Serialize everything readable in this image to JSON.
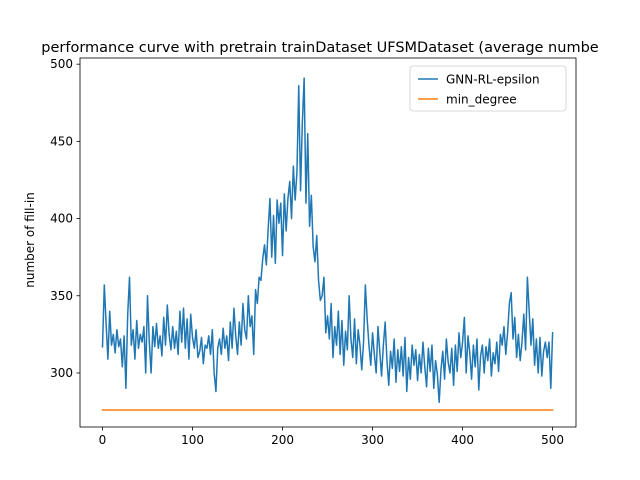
{
  "chart_data": {
    "type": "line",
    "title": "performance curve with pretrain trainDataset UFSMDataset (average numbe",
    "xlabel": "",
    "ylabel": "number of fill-in",
    "xlim": [
      -25,
      526
    ],
    "ylim": [
      265,
      504
    ],
    "xticks": [
      0,
      100,
      200,
      300,
      400,
      500
    ],
    "yticks": [
      300,
      350,
      400,
      450,
      500
    ],
    "grid": false,
    "legend_position": "top-right",
    "series": [
      {
        "name": "GNN-RL-epsilon",
        "color": "#1f77b4",
        "keypoints": [
          [
            0,
            317
          ],
          [
            2,
            357
          ],
          [
            4,
            332
          ],
          [
            6,
            309
          ],
          [
            8,
            340
          ],
          [
            10,
            318
          ],
          [
            12,
            325
          ],
          [
            14,
            313
          ],
          [
            16,
            328
          ],
          [
            18,
            317
          ],
          [
            20,
            322
          ],
          [
            22,
            304
          ],
          [
            24,
            324
          ],
          [
            26,
            290
          ],
          [
            28,
            338
          ],
          [
            30,
            362
          ],
          [
            32,
            318
          ],
          [
            34,
            328
          ],
          [
            36,
            309
          ],
          [
            38,
            334
          ],
          [
            40,
            316
          ],
          [
            42,
            325
          ],
          [
            44,
            320
          ],
          [
            46,
            330
          ],
          [
            48,
            300
          ],
          [
            50,
            350
          ],
          [
            52,
            320
          ],
          [
            54,
            300
          ],
          [
            56,
            330
          ],
          [
            58,
            317
          ],
          [
            60,
            332
          ],
          [
            62,
            316
          ],
          [
            64,
            324
          ],
          [
            66,
            311
          ],
          [
            68,
            336
          ],
          [
            70,
            318
          ],
          [
            72,
            344
          ],
          [
            74,
            325
          ],
          [
            76,
            315
          ],
          [
            78,
            330
          ],
          [
            80,
            316
          ],
          [
            82,
            327
          ],
          [
            84,
            312
          ],
          [
            86,
            340
          ],
          [
            88,
            320
          ],
          [
            90,
            342
          ],
          [
            92,
            316
          ],
          [
            94,
            335
          ],
          [
            96,
            309
          ],
          [
            98,
            338
          ],
          [
            100,
            323
          ],
          [
            102,
            316
          ],
          [
            104,
            328
          ],
          [
            106,
            310
          ],
          [
            108,
            314
          ],
          [
            110,
            323
          ],
          [
            112,
            306
          ],
          [
            114,
            318
          ],
          [
            116,
            316
          ],
          [
            118,
            324
          ],
          [
            120,
            312
          ],
          [
            122,
            328
          ],
          [
            124,
            300
          ],
          [
            126,
            288
          ],
          [
            128,
            316
          ],
          [
            130,
            322
          ],
          [
            132,
            312
          ],
          [
            134,
            329
          ],
          [
            136,
            316
          ],
          [
            138,
            324
          ],
          [
            140,
            308
          ],
          [
            142,
            333
          ],
          [
            144,
            316
          ],
          [
            146,
            342
          ],
          [
            148,
            324
          ],
          [
            150,
            312
          ],
          [
            152,
            333
          ],
          [
            154,
            318
          ],
          [
            156,
            345
          ],
          [
            158,
            328
          ],
          [
            160,
            322
          ],
          [
            162,
            350
          ],
          [
            164,
            330
          ],
          [
            166,
            337
          ],
          [
            168,
            312
          ],
          [
            170,
            354
          ],
          [
            172,
            345
          ],
          [
            174,
            362
          ],
          [
            176,
            360
          ],
          [
            178,
            374
          ],
          [
            180,
            383
          ],
          [
            182,
            370
          ],
          [
            184,
            393
          ],
          [
            186,
            413
          ],
          [
            188,
            375
          ],
          [
            190,
            402
          ],
          [
            192,
            371
          ],
          [
            194,
            412
          ],
          [
            196,
            397
          ],
          [
            198,
            410
          ],
          [
            200,
            376
          ],
          [
            202,
            416
          ],
          [
            204,
            392
          ],
          [
            206,
            413
          ],
          [
            208,
            424
          ],
          [
            210,
            400
          ],
          [
            212,
            434
          ],
          [
            214,
            412
          ],
          [
            216,
            430
          ],
          [
            218,
            486
          ],
          [
            220,
            418
          ],
          [
            222,
            462
          ],
          [
            224,
            491
          ],
          [
            226,
            410
          ],
          [
            228,
            455
          ],
          [
            230,
            395
          ],
          [
            232,
            415
          ],
          [
            234,
            382
          ],
          [
            236,
            372
          ],
          [
            238,
            389
          ],
          [
            240,
            360
          ],
          [
            242,
            347
          ],
          [
            244,
            350
          ],
          [
            246,
            362
          ],
          [
            248,
            326
          ],
          [
            250,
            337
          ],
          [
            252,
            322
          ],
          [
            254,
            345
          ],
          [
            256,
            310
          ],
          [
            258,
            330
          ],
          [
            260,
            318
          ],
          [
            262,
            340
          ],
          [
            264,
            312
          ],
          [
            266,
            334
          ],
          [
            268,
            305
          ],
          [
            270,
            327
          ],
          [
            272,
            315
          ],
          [
            274,
            350
          ],
          [
            276,
            322
          ],
          [
            278,
            310
          ],
          [
            280,
            335
          ],
          [
            282,
            306
          ],
          [
            284,
            328
          ],
          [
            286,
            318
          ],
          [
            288,
            302
          ],
          [
            290,
            320
          ],
          [
            292,
            357
          ],
          [
            294,
            335
          ],
          [
            296,
            318
          ],
          [
            298,
            305
          ],
          [
            300,
            326
          ],
          [
            302,
            312
          ],
          [
            304,
            300
          ],
          [
            306,
            330
          ],
          [
            308,
            314
          ],
          [
            310,
            298
          ],
          [
            312,
            318
          ],
          [
            314,
            333
          ],
          [
            316,
            308
          ],
          [
            318,
            292
          ],
          [
            320,
            314
          ],
          [
            322,
            303
          ],
          [
            324,
            322
          ],
          [
            326,
            294
          ],
          [
            328,
            315
          ],
          [
            330,
            301
          ],
          [
            332,
            317
          ],
          [
            334,
            298
          ],
          [
            336,
            323
          ],
          [
            338,
            288
          ],
          [
            340,
            310
          ],
          [
            342,
            296
          ],
          [
            344,
            318
          ],
          [
            346,
            305
          ],
          [
            348,
            315
          ],
          [
            350,
            295
          ],
          [
            352,
            312
          ],
          [
            354,
            300
          ],
          [
            356,
            320
          ],
          [
            358,
            304
          ],
          [
            360,
            291
          ],
          [
            362,
            316
          ],
          [
            364,
            301
          ],
          [
            366,
            318
          ],
          [
            368,
            290
          ],
          [
            370,
            308
          ],
          [
            372,
            299
          ],
          [
            374,
            281
          ],
          [
            376,
            302
          ],
          [
            378,
            314
          ],
          [
            380,
            296
          ],
          [
            382,
            322
          ],
          [
            384,
            307
          ],
          [
            386,
            300
          ],
          [
            388,
            316
          ],
          [
            390,
            292
          ],
          [
            392,
            318
          ],
          [
            394,
            301
          ],
          [
            396,
            326
          ],
          [
            398,
            310
          ],
          [
            400,
            320
          ],
          [
            402,
            336
          ],
          [
            404,
            300
          ],
          [
            406,
            324
          ],
          [
            408,
            313
          ],
          [
            410,
            296
          ],
          [
            412,
            318
          ],
          [
            414,
            304
          ],
          [
            416,
            322
          ],
          [
            418,
            289
          ],
          [
            420,
            311
          ],
          [
            422,
            318
          ],
          [
            424,
            300
          ],
          [
            426,
            317
          ],
          [
            428,
            308
          ],
          [
            430,
            322
          ],
          [
            432,
            298
          ],
          [
            434,
            313
          ],
          [
            436,
            306
          ],
          [
            438,
            320
          ],
          [
            440,
            301
          ],
          [
            442,
            325
          ],
          [
            444,
            318
          ],
          [
            446,
            330
          ],
          [
            448,
            312
          ],
          [
            450,
            326
          ],
          [
            452,
            345
          ],
          [
            454,
            352
          ],
          [
            456,
            322
          ],
          [
            458,
            336
          ],
          [
            460,
            310
          ],
          [
            462,
            325
          ],
          [
            464,
            308
          ],
          [
            466,
            320
          ],
          [
            468,
            338
          ],
          [
            470,
            315
          ],
          [
            472,
            362
          ],
          [
            474,
            340
          ],
          [
            476,
            318
          ],
          [
            478,
            335
          ],
          [
            480,
            305
          ],
          [
            482,
            322
          ],
          [
            484,
            300
          ],
          [
            486,
            323
          ],
          [
            488,
            298
          ],
          [
            490,
            314
          ],
          [
            492,
            320
          ],
          [
            494,
            310
          ],
          [
            496,
            320
          ],
          [
            498,
            290
          ],
          [
            500,
            326
          ]
        ]
      },
      {
        "name": "min_degree",
        "color": "#ff7f0e",
        "keypoints": [
          [
            0,
            276
          ],
          [
            500,
            276
          ]
        ]
      }
    ]
  }
}
